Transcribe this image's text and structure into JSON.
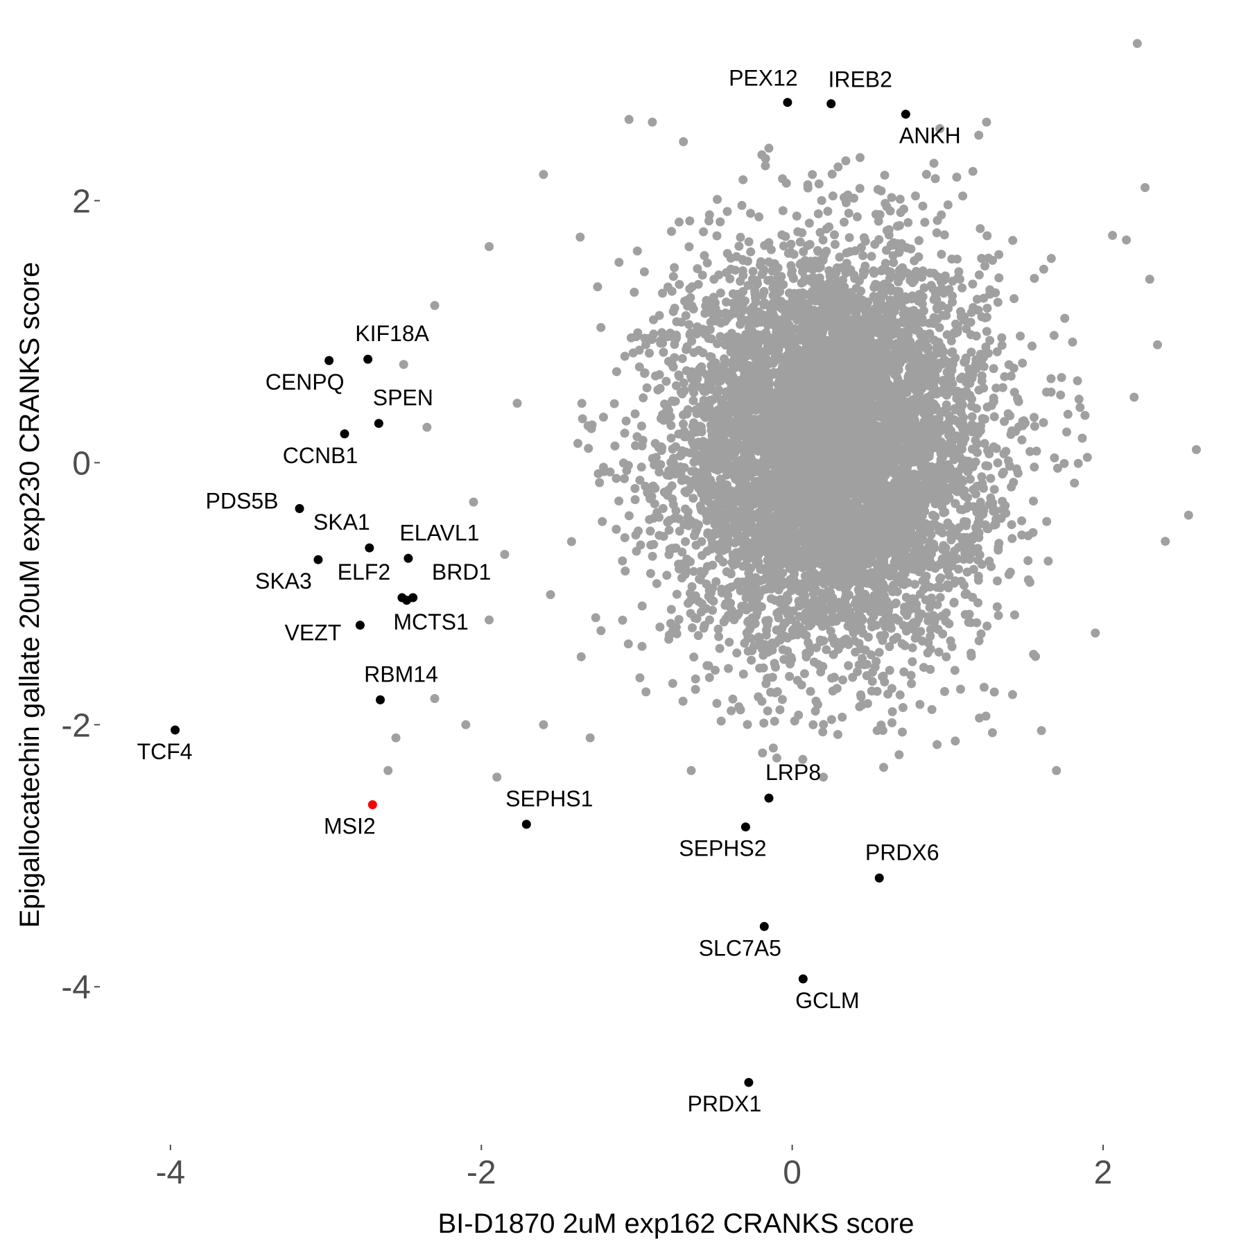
{
  "chart_data": {
    "type": "scatter",
    "xlabel": "BI-D1870 2uM exp162 CRANKS score",
    "ylabel": "Epigallocatechin gallate 20uM exp230 CRANKS score",
    "xlim": [
      -4.45,
      2.62
    ],
    "ylim": [
      -5.2,
      3.32
    ],
    "x_ticks": [
      -4,
      -2,
      0,
      2
    ],
    "x_tick_labels": [
      "-4",
      "-2",
      "0",
      "2"
    ],
    "y_ticks": [
      2,
      0,
      -2,
      -4
    ],
    "y_tick_labels": [
      "2",
      "0",
      "-2",
      "-4"
    ],
    "grid": false,
    "legend": "none",
    "colors": {
      "background_points": "#a0a0a0",
      "labeled_points": "#000000",
      "highlight": "#ff0000",
      "ticks": "#4d4d4d"
    },
    "background_points": {
      "description_count": 7000,
      "center": [
        0.25,
        0.1
      ],
      "spread": [
        0.5,
        0.75
      ],
      "outliers": [
        [
          2.22,
          3.2
        ],
        [
          2.27,
          2.1
        ],
        [
          1.25,
          2.6
        ],
        [
          -1.05,
          2.62
        ],
        [
          -0.9,
          2.6
        ],
        [
          -0.7,
          2.45
        ],
        [
          -0.15,
          2.4
        ],
        [
          0.95,
          2.55
        ],
        [
          1.2,
          2.5
        ],
        [
          -1.6,
          2.2
        ],
        [
          -1.95,
          1.65
        ],
        [
          -2.3,
          1.2
        ],
        [
          -2.5,
          0.75
        ],
        [
          -2.35,
          0.27
        ],
        [
          -2.05,
          -0.3
        ],
        [
          -1.85,
          -0.7
        ],
        [
          -1.95,
          -1.2
        ],
        [
          -2.1,
          -2.0
        ],
        [
          -2.3,
          -1.8
        ],
        [
          -2.55,
          -2.1
        ],
        [
          -2.6,
          -2.35
        ],
        [
          -1.9,
          -2.4
        ],
        [
          -1.6,
          -2.0
        ],
        [
          -1.3,
          -2.1
        ],
        [
          -0.65,
          -2.35
        ],
        [
          0.2,
          -2.4
        ],
        [
          1.7,
          -2.35
        ],
        [
          2.6,
          0.1
        ],
        [
          2.55,
          -0.4
        ],
        [
          2.4,
          -0.6
        ],
        [
          2.35,
          0.9
        ],
        [
          2.15,
          1.7
        ],
        [
          2.3,
          1.4
        ],
        [
          2.2,
          0.5
        ],
        [
          1.95,
          -1.3
        ],
        [
          1.3,
          -1.75
        ]
      ]
    },
    "labeled_points": [
      {
        "name": "PEX12",
        "x": -0.03,
        "y": 2.75
      },
      {
        "name": "IREB2",
        "x": 0.25,
        "y": 2.74
      },
      {
        "name": "ANKH",
        "x": 0.73,
        "y": 2.66
      },
      {
        "name": "KIF18A",
        "x": -2.73,
        "y": 0.79
      },
      {
        "name": "CENPQ",
        "x": -2.98,
        "y": 0.78
      },
      {
        "name": "SPEN",
        "x": -2.66,
        "y": 0.3
      },
      {
        "name": "CCNB1",
        "x": -2.88,
        "y": 0.22
      },
      {
        "name": "PDS5B",
        "x": -3.17,
        "y": -0.35
      },
      {
        "name": "SKA1",
        "x": -2.72,
        "y": -0.65
      },
      {
        "name": "ELAVL1",
        "x": -2.47,
        "y": -0.73
      },
      {
        "name": "SKA3",
        "x": -3.05,
        "y": -0.74
      },
      {
        "name": "ELF2",
        "x": -2.51,
        "y": -1.03
      },
      {
        "name": "BRD1",
        "x": -2.44,
        "y": -1.03
      },
      {
        "name": "MCTS1",
        "x": -2.48,
        "y": -1.05
      },
      {
        "name": "VEZT",
        "x": -2.78,
        "y": -1.24
      },
      {
        "name": "RBM14",
        "x": -2.65,
        "y": -1.81
      },
      {
        "name": "TCF4",
        "x": -3.97,
        "y": -2.04
      },
      {
        "name": "MSI2",
        "x": -2.7,
        "y": -2.61,
        "highlight": true
      },
      {
        "name": "SEPHS1",
        "x": -1.71,
        "y": -2.76
      },
      {
        "name": "LRP8",
        "x": -0.15,
        "y": -2.56
      },
      {
        "name": "SEPHS2",
        "x": -0.3,
        "y": -2.78
      },
      {
        "name": "PRDX6",
        "x": 0.56,
        "y": -3.17
      },
      {
        "name": "SLC7A5",
        "x": -0.18,
        "y": -3.54
      },
      {
        "name": "GCLM",
        "x": 0.07,
        "y": -3.94
      },
      {
        "name": "PRDX1",
        "x": -0.28,
        "y": -4.73
      }
    ]
  }
}
